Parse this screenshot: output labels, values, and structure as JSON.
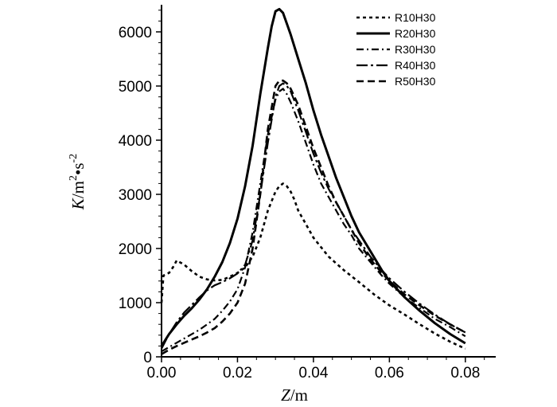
{
  "chart_data": {
    "type": "line",
    "xlabel_var": "Z",
    "xlabel_unit": "/m",
    "ylabel_var": "K",
    "ylabel_unit_pre": "/m",
    "ylabel_unit_exp1": "2",
    "ylabel_unit_mid": "•s",
    "ylabel_unit_exp2": "-2",
    "xlim": [
      0,
      0.088
    ],
    "ylim": [
      0,
      6500
    ],
    "xticks": [
      0.0,
      0.02,
      0.04,
      0.06,
      0.08
    ],
    "xtick_labels": [
      "0.00",
      "0.02",
      "0.04",
      "0.06",
      "0.08"
    ],
    "yticks": [
      0,
      1000,
      2000,
      3000,
      4000,
      5000,
      6000
    ],
    "ytick_labels": [
      "0",
      "1000",
      "2000",
      "3000",
      "4000",
      "5000",
      "6000"
    ],
    "grid": false,
    "legend_position": "top-right",
    "series": [
      {
        "name": "R10H30",
        "dash": "dot",
        "x": [
          0,
          0.0005,
          0.001,
          0.002,
          0.003,
          0.004,
          0.006,
          0.008,
          0.01,
          0.012,
          0.014,
          0.016,
          0.018,
          0.02,
          0.022,
          0.024,
          0.026,
          0.028,
          0.03,
          0.031,
          0.032,
          0.033,
          0.034,
          0.035,
          0.036,
          0.038,
          0.04,
          0.044,
          0.048,
          0.052,
          0.056,
          0.06,
          0.064,
          0.068,
          0.072,
          0.076,
          0.08
        ],
        "y": [
          1000,
          1500,
          1520,
          1550,
          1650,
          1780,
          1700,
          1580,
          1480,
          1430,
          1410,
          1420,
          1480,
          1550,
          1650,
          1850,
          2200,
          2700,
          3050,
          3150,
          3200,
          3150,
          3050,
          2900,
          2700,
          2450,
          2200,
          1850,
          1600,
          1380,
          1150,
          950,
          780,
          600,
          430,
          280,
          150
        ]
      },
      {
        "name": "R20H30",
        "dash": "solid",
        "x": [
          0,
          0.002,
          0.004,
          0.006,
          0.008,
          0.01,
          0.012,
          0.014,
          0.016,
          0.018,
          0.02,
          0.022,
          0.024,
          0.026,
          0.028,
          0.029,
          0.03,
          0.031,
          0.032,
          0.033,
          0.034,
          0.036,
          0.038,
          0.04,
          0.042,
          0.044,
          0.046,
          0.048,
          0.05,
          0.052,
          0.055,
          0.058,
          0.06,
          0.064,
          0.068,
          0.072,
          0.076,
          0.08
        ],
        "y": [
          200,
          420,
          600,
          760,
          900,
          1060,
          1250,
          1480,
          1750,
          2100,
          2550,
          3150,
          3900,
          4850,
          5700,
          6100,
          6380,
          6420,
          6350,
          6150,
          5950,
          5500,
          5050,
          4550,
          4100,
          3700,
          3300,
          2950,
          2600,
          2300,
          1950,
          1600,
          1400,
          1100,
          850,
          620,
          420,
          250
        ]
      },
      {
        "name": "R30H30",
        "dash": "dashdot",
        "x": [
          0,
          0.002,
          0.004,
          0.006,
          0.008,
          0.01,
          0.012,
          0.014,
          0.016,
          0.018,
          0.02,
          0.022,
          0.024,
          0.026,
          0.028,
          0.03,
          0.031,
          0.032,
          0.033,
          0.034,
          0.036,
          0.038,
          0.04,
          0.042,
          0.044,
          0.046,
          0.048,
          0.05,
          0.052,
          0.055,
          0.058,
          0.06,
          0.064,
          0.068,
          0.072,
          0.076,
          0.08
        ],
        "y": [
          100,
          180,
          260,
          340,
          420,
          500,
          600,
          700,
          850,
          1020,
          1250,
          1650,
          2300,
          3200,
          4100,
          4750,
          4900,
          4950,
          4850,
          4700,
          4350,
          3950,
          3550,
          3200,
          2950,
          2700,
          2450,
          2250,
          2000,
          1750,
          1500,
          1350,
          1100,
          900,
          700,
          550,
          380
        ]
      },
      {
        "name": "R40H30",
        "dash": "dashdotlong",
        "x": [
          0,
          0.002,
          0.004,
          0.006,
          0.008,
          0.01,
          0.012,
          0.014,
          0.016,
          0.018,
          0.02,
          0.022,
          0.024,
          0.026,
          0.028,
          0.03,
          0.031,
          0.032,
          0.033,
          0.034,
          0.036,
          0.038,
          0.04,
          0.042,
          0.044,
          0.046,
          0.048,
          0.05,
          0.052,
          0.055,
          0.058,
          0.06,
          0.064,
          0.068,
          0.072,
          0.076,
          0.08
        ],
        "y": [
          150,
          420,
          640,
          820,
          960,
          1100,
          1230,
          1320,
          1380,
          1450,
          1540,
          1700,
          2150,
          3000,
          3950,
          4800,
          5000,
          5050,
          5000,
          4900,
          4550,
          4150,
          3750,
          3400,
          3100,
          2850,
          2600,
          2350,
          2150,
          1850,
          1600,
          1450,
          1200,
          980,
          780,
          600,
          450
        ]
      },
      {
        "name": "R50H30",
        "dash": "dash",
        "x": [
          0,
          0.002,
          0.004,
          0.006,
          0.008,
          0.01,
          0.012,
          0.014,
          0.016,
          0.018,
          0.02,
          0.022,
          0.024,
          0.026,
          0.028,
          0.03,
          0.031,
          0.032,
          0.033,
          0.034,
          0.036,
          0.038,
          0.04,
          0.042,
          0.044,
          0.046,
          0.048,
          0.05,
          0.052,
          0.055,
          0.058,
          0.06,
          0.064,
          0.068,
          0.072,
          0.076,
          0.08
        ],
        "y": [
          50,
          130,
          200,
          260,
          320,
          380,
          450,
          530,
          650,
          800,
          1000,
          1350,
          2000,
          3000,
          4200,
          5000,
          5100,
          5100,
          5050,
          4950,
          4650,
          4250,
          3850,
          3500,
          3150,
          2850,
          2600,
          2350,
          2100,
          1800,
          1550,
          1400,
          1150,
          950,
          760,
          600,
          450
        ]
      }
    ]
  }
}
